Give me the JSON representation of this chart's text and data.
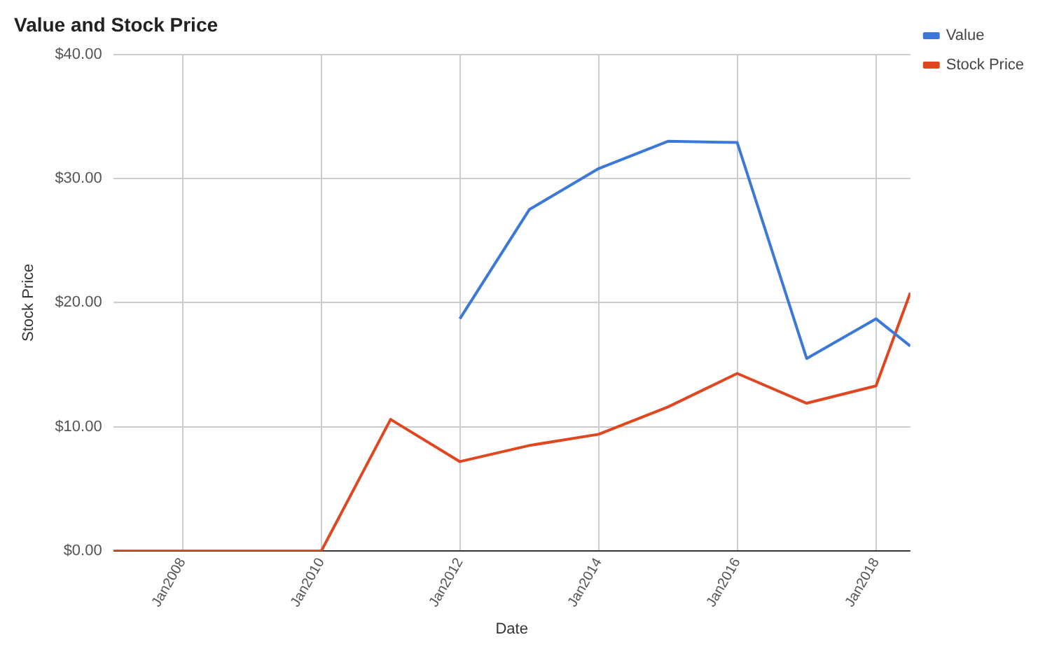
{
  "chart_data": {
    "type": "line",
    "title": "Value and Stock Price",
    "xlabel": "Date",
    "ylabel": "Stock Price",
    "xlim": [
      "2007-01",
      "2018-07"
    ],
    "xticks": [
      {
        "value": "2008-01",
        "label": "Jan2008"
      },
      {
        "value": "2010-01",
        "label": "Jan2010"
      },
      {
        "value": "2012-01",
        "label": "Jan2012"
      },
      {
        "value": "2014-01",
        "label": "Jan2014"
      },
      {
        "value": "2016-01",
        "label": "Jan2016"
      },
      {
        "value": "2018-01",
        "label": "Jan2018"
      }
    ],
    "ylim": [
      0,
      40
    ],
    "yticks": [
      {
        "value": 0,
        "label": "$0.00"
      },
      {
        "value": 10,
        "label": "$10.00"
      },
      {
        "value": 20,
        "label": "$20.00"
      },
      {
        "value": 30,
        "label": "$30.00"
      },
      {
        "value": 40,
        "label": "$40.00"
      }
    ],
    "grid": true,
    "legend": "right",
    "marker": "none",
    "line_style": "solid",
    "series": [
      {
        "name": "Value",
        "color": "#3c78d8",
        "x": [
          "2012-01",
          "2013-01",
          "2014-01",
          "2015-01",
          "2016-01",
          "2017-01",
          "2018-01",
          "2018-07"
        ],
        "values": [
          18.7,
          27.5,
          30.8,
          33.0,
          32.9,
          15.5,
          18.7,
          16.5
        ]
      },
      {
        "name": "Stock Price",
        "color": "#e0461f",
        "x": [
          "2007-01",
          "2008-01",
          "2009-01",
          "2010-01",
          "2011-01",
          "2012-01",
          "2013-01",
          "2014-01",
          "2015-01",
          "2016-01",
          "2017-01",
          "2018-01",
          "2018-07"
        ],
        "values": [
          0,
          0,
          0,
          0,
          10.6,
          7.2,
          8.5,
          9.4,
          11.6,
          14.3,
          11.9,
          13.3,
          20.8
        ]
      }
    ]
  }
}
